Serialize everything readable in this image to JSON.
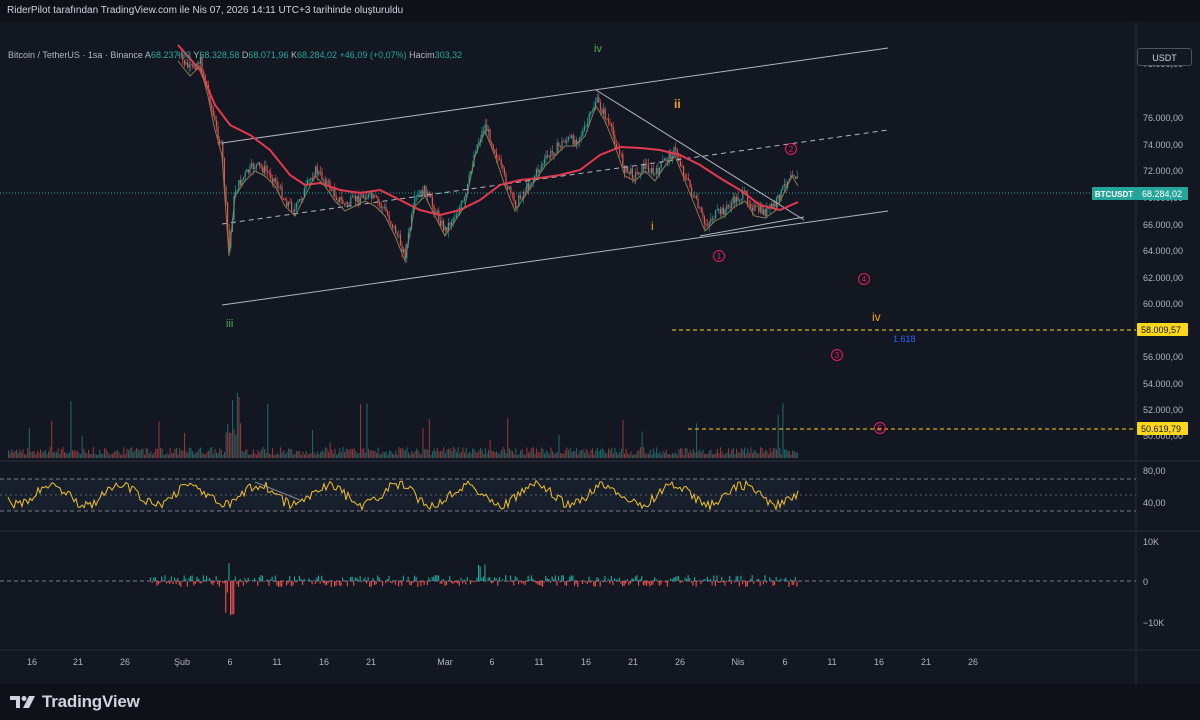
{
  "header": {
    "attribution": "RiderPilot tarafından TradingView.com ile Nis 07, 2026 14:11 UTC+3 tarihinde oluşturuldu"
  },
  "legend": {
    "symbol": "Bitcoin / TetherUS · 1sa · Binance",
    "open_label": "A",
    "open": "68.237,93",
    "high_label": "Y",
    "high": "68.328,58",
    "low_label": "D",
    "low": "68.071,96",
    "close_label": "K",
    "close": "68.284,02",
    "change": "+46,09 (+0,07%)",
    "volume_label": "Hacim",
    "volume": "303,32"
  },
  "currency_button": "USDT",
  "price_axis": {
    "ticks": [
      "78.000,00",
      "76.000,00",
      "74.000,00",
      "72.000,00",
      "70.000,00",
      "66.000,00",
      "64.000,00",
      "62.000,00",
      "60.000,00",
      "56.000,00",
      "54.000,00",
      "52.000,00",
      "50.000,00"
    ],
    "current_symbol": "BTCUSDT",
    "current_price": "68.284,02",
    "level_1": "58.009,57",
    "level_2": "50.619,79"
  },
  "rsi_axis": {
    "ticks": [
      "80,00",
      "40,00"
    ]
  },
  "osc_axis": {
    "ticks": [
      "10K",
      "0",
      "−10K"
    ]
  },
  "time_axis": {
    "labels": [
      "16",
      "21",
      "26",
      "Şub",
      "6",
      "11",
      "16",
      "21",
      "Mar",
      "6",
      "11",
      "16",
      "21",
      "26",
      "Nis",
      "6",
      "11",
      "16",
      "21",
      "26"
    ]
  },
  "annotations": {
    "wave_iii": "iii",
    "wave_iv": "iv",
    "wave_ii": "ii",
    "wave_i": "i",
    "wave_iv_orange": "iv",
    "fib": "1.618",
    "c1": "1",
    "c2": "2",
    "c3": "3",
    "c4": "4",
    "c5": "5"
  },
  "footer": {
    "brand": "TradingView"
  },
  "colors": {
    "up": "#26a69a",
    "down": "#ef5350",
    "ma": "#e53950",
    "rsi": "#f2c12e",
    "level": "#f9d71c",
    "background": "#131722"
  }
}
